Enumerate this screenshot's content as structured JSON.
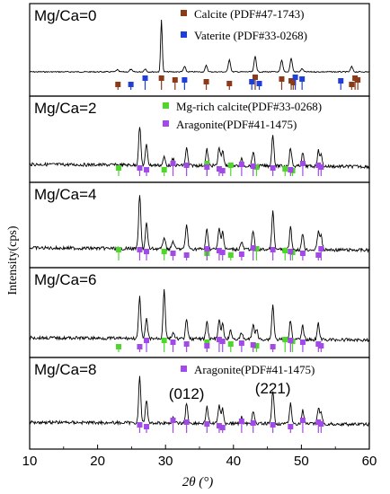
{
  "chart_data": {
    "type": "line",
    "xlabel": "2θ (°)",
    "ylabel": "Intensity(cps)",
    "x_ticks": [
      "10",
      "20",
      "30",
      "40",
      "50",
      "60"
    ],
    "xlim": [
      10,
      60
    ],
    "marker_colors": {
      "Calcite": "#8b3a1a",
      "Vaterite": "#1f3fd6",
      "Mg-rich calcite": "#4fd62a",
      "Aragonite": "#a24ae8",
      "line": "#000000"
    },
    "panels": [
      {
        "label": "Mg/Ca=0",
        "legend": [
          {
            "phase": "Calcite",
            "text": "Calcite (PDF#47-1743)"
          },
          {
            "phase": "Vaterite",
            "text": "Vaterite (PDF#33-0268)"
          }
        ],
        "peaks": [
          {
            "x": 29.4,
            "h": 1.0
          },
          {
            "x": 22.9,
            "h": 0.04
          },
          {
            "x": 24.9,
            "h": 0.05
          },
          {
            "x": 27.0,
            "h": 0.06
          },
          {
            "x": 32.8,
            "h": 0.1
          },
          {
            "x": 36.0,
            "h": 0.12
          },
          {
            "x": 39.4,
            "h": 0.24
          },
          {
            "x": 43.2,
            "h": 0.3
          },
          {
            "x": 47.1,
            "h": 0.22
          },
          {
            "x": 48.5,
            "h": 0.26
          },
          {
            "x": 50.1,
            "h": 0.06
          },
          {
            "x": 57.4,
            "h": 0.1
          }
        ],
        "markers": [
          {
            "phase": "Calcite",
            "positions": [
              23.0,
              29.4,
              31.4,
              36.0,
              39.4,
              43.2,
              47.1,
              48.5,
              48.8,
              57.4,
              57.9,
              58.3
            ]
          },
          {
            "phase": "Vaterite",
            "positions": [
              24.9,
              27.0,
              32.8,
              42.7,
              43.8,
              49.1,
              50.1,
              55.8
            ]
          }
        ]
      },
      {
        "label": "Mg/Ca=2",
        "legend": [
          {
            "phase": "Mg-rich calcite",
            "text": "Mg-rich calcite(PDF#33-0268)"
          },
          {
            "phase": "Aragonite",
            "text": "Aragonite(PDF#41-1475)"
          }
        ],
        "peaks": [
          {
            "x": 26.2,
            "h": 0.72
          },
          {
            "x": 27.2,
            "h": 0.38
          },
          {
            "x": 29.8,
            "h": 0.15
          },
          {
            "x": 31.1,
            "h": 0.12
          },
          {
            "x": 33.1,
            "h": 0.32
          },
          {
            "x": 36.1,
            "h": 0.3
          },
          {
            "x": 37.9,
            "h": 0.34
          },
          {
            "x": 38.4,
            "h": 0.28
          },
          {
            "x": 41.2,
            "h": 0.12
          },
          {
            "x": 42.9,
            "h": 0.26
          },
          {
            "x": 45.8,
            "h": 0.58
          },
          {
            "x": 48.4,
            "h": 0.34
          },
          {
            "x": 50.2,
            "h": 0.24
          },
          {
            "x": 52.5,
            "h": 0.28
          },
          {
            "x": 52.9,
            "h": 0.2
          }
        ],
        "markers": [
          {
            "phase": "Mg-rich calcite",
            "positions": [
              23.1,
              29.8,
              36.1,
              39.6,
              43.4,
              47.6,
              48.7
            ]
          },
          {
            "phase": "Aragonite",
            "positions": [
              26.2,
              27.2,
              31.1,
              33.1,
              36.1,
              37.9,
              38.4,
              41.2,
              42.9,
              45.8,
              48.4,
              50.2,
              52.5,
              52.9
            ]
          }
        ]
      },
      {
        "label": "Mg/Ca=4",
        "peaks": [
          {
            "x": 26.2,
            "h": 0.88
          },
          {
            "x": 27.2,
            "h": 0.42
          },
          {
            "x": 29.8,
            "h": 0.2
          },
          {
            "x": 31.1,
            "h": 0.13
          },
          {
            "x": 33.1,
            "h": 0.4
          },
          {
            "x": 36.1,
            "h": 0.33
          },
          {
            "x": 37.9,
            "h": 0.34
          },
          {
            "x": 38.4,
            "h": 0.3
          },
          {
            "x": 41.2,
            "h": 0.12
          },
          {
            "x": 42.9,
            "h": 0.3
          },
          {
            "x": 45.8,
            "h": 0.62
          },
          {
            "x": 48.4,
            "h": 0.36
          },
          {
            "x": 50.2,
            "h": 0.26
          },
          {
            "x": 52.5,
            "h": 0.3
          },
          {
            "x": 52.9,
            "h": 0.22
          }
        ],
        "markers": [
          {
            "phase": "Mg-rich calcite",
            "positions": [
              23.1,
              29.8,
              36.1,
              39.6,
              43.4,
              47.6,
              48.7
            ]
          },
          {
            "phase": "Aragonite",
            "positions": [
              26.2,
              27.2,
              31.1,
              33.1,
              36.1,
              37.9,
              38.4,
              41.2,
              42.9,
              45.8,
              48.4,
              50.2,
              52.5,
              52.9
            ]
          }
        ]
      },
      {
        "label": "Mg/Ca=6",
        "peaks": [
          {
            "x": 26.2,
            "h": 0.68
          },
          {
            "x": 27.2,
            "h": 0.32
          },
          {
            "x": 29.8,
            "h": 0.8
          },
          {
            "x": 31.1,
            "h": 0.1
          },
          {
            "x": 33.1,
            "h": 0.3
          },
          {
            "x": 36.1,
            "h": 0.28
          },
          {
            "x": 37.9,
            "h": 0.3
          },
          {
            "x": 38.4,
            "h": 0.24
          },
          {
            "x": 39.6,
            "h": 0.14
          },
          {
            "x": 41.2,
            "h": 0.1
          },
          {
            "x": 42.9,
            "h": 0.24
          },
          {
            "x": 43.4,
            "h": 0.16
          },
          {
            "x": 45.8,
            "h": 0.56
          },
          {
            "x": 48.4,
            "h": 0.32
          },
          {
            "x": 50.2,
            "h": 0.22
          },
          {
            "x": 52.5,
            "h": 0.26
          }
        ],
        "markers": [
          {
            "phase": "Mg-rich calcite",
            "positions": [
              23.1,
              29.8,
              36.1,
              39.6,
              43.4,
              47.6,
              48.7
            ]
          },
          {
            "phase": "Aragonite",
            "positions": [
              26.2,
              27.2,
              31.1,
              33.1,
              36.1,
              37.9,
              38.4,
              41.2,
              42.9,
              45.8,
              48.4,
              50.2,
              52.5,
              52.9
            ]
          }
        ]
      },
      {
        "label": "Mg/Ca=8",
        "legend": [
          {
            "phase": "Aragonite",
            "text": "Aragonite(PDF#41-1475)"
          }
        ],
        "annotations": [
          {
            "text": "(012)",
            "x": 33.1
          },
          {
            "text": "(221)",
            "x": 45.8
          }
        ],
        "peaks": [
          {
            "x": 26.2,
            "h": 0.82
          },
          {
            "x": 27.2,
            "h": 0.4
          },
          {
            "x": 31.1,
            "h": 0.1
          },
          {
            "x": 33.1,
            "h": 0.36
          },
          {
            "x": 36.1,
            "h": 0.3
          },
          {
            "x": 37.9,
            "h": 0.34
          },
          {
            "x": 38.4,
            "h": 0.26
          },
          {
            "x": 41.2,
            "h": 0.12
          },
          {
            "x": 42.9,
            "h": 0.24
          },
          {
            "x": 45.8,
            "h": 0.6
          },
          {
            "x": 48.4,
            "h": 0.36
          },
          {
            "x": 50.2,
            "h": 0.24
          },
          {
            "x": 52.5,
            "h": 0.28
          },
          {
            "x": 52.9,
            "h": 0.2
          }
        ],
        "markers": [
          {
            "phase": "Aragonite",
            "positions": [
              26.2,
              27.2,
              31.1,
              33.1,
              36.1,
              37.9,
              38.4,
              41.2,
              42.9,
              45.8,
              48.4,
              50.2,
              52.5,
              52.9
            ]
          }
        ]
      }
    ]
  }
}
